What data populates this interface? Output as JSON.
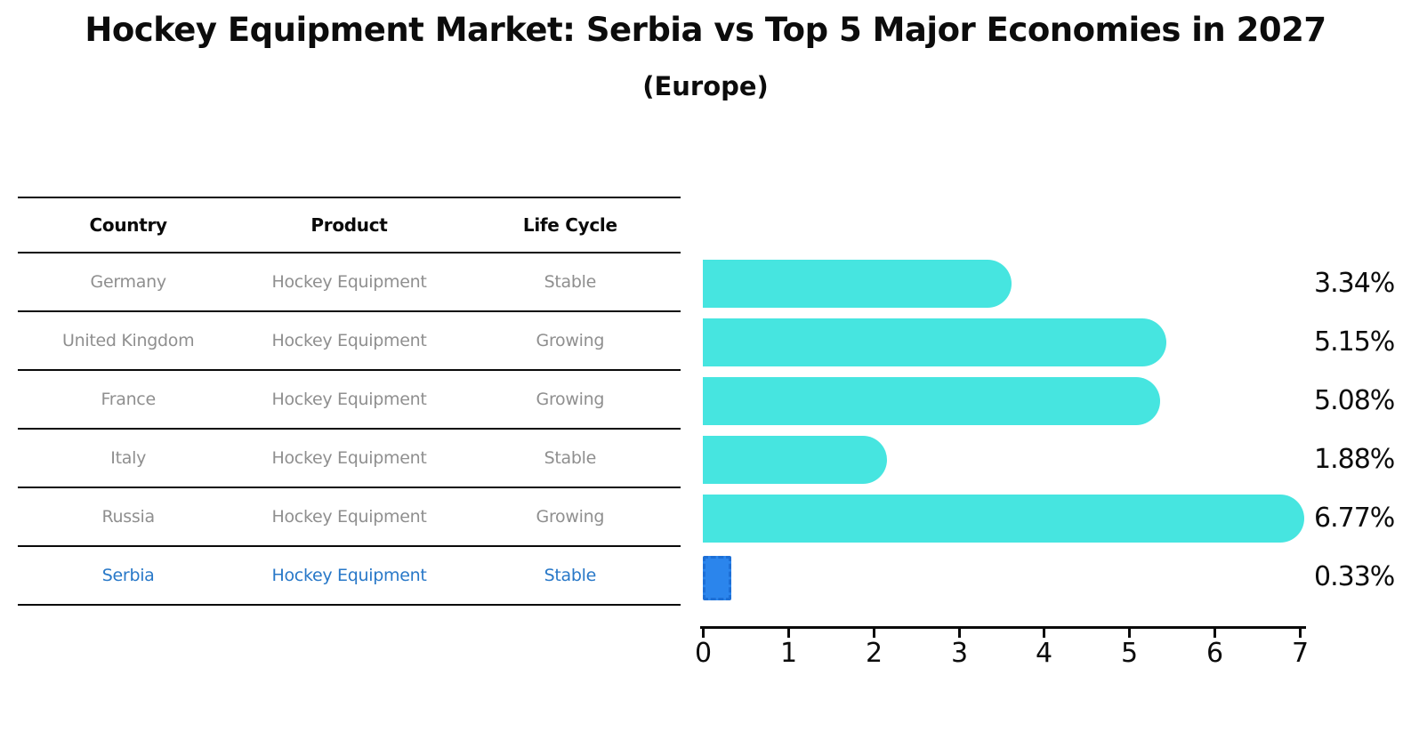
{
  "title": "Hockey Equipment Market: Serbia vs Top 5 Major Economies in 2027",
  "subtitle": "(Europe)",
  "table": {
    "headers": [
      "Country",
      "Product",
      "Life Cycle"
    ],
    "rows": [
      {
        "country": "Germany",
        "product": "Hockey Equipment",
        "life_cycle": "Stable",
        "highlight": false
      },
      {
        "country": "United Kingdom",
        "product": "Hockey Equipment",
        "life_cycle": "Growing",
        "highlight": false
      },
      {
        "country": "France",
        "product": "Hockey Equipment",
        "life_cycle": "Growing",
        "highlight": false
      },
      {
        "country": "Italy",
        "product": "Hockey Equipment",
        "life_cycle": "Stable",
        "highlight": false
      },
      {
        "country": "Russia",
        "product": "Hockey Equipment",
        "life_cycle": "Growing",
        "highlight": false
      },
      {
        "country": "Serbia",
        "product": "Hockey Equipment",
        "life_cycle": "Stable",
        "highlight": true
      }
    ]
  },
  "chart_data": {
    "type": "bar",
    "orientation": "horizontal",
    "title": "Hockey Equipment Market: Serbia vs Top 5 Major Economies in 2027",
    "subtitle": "(Europe)",
    "categories": [
      "Germany",
      "United Kingdom",
      "France",
      "Italy",
      "Russia",
      "Serbia"
    ],
    "values": [
      3.34,
      5.15,
      5.08,
      1.88,
      6.77,
      0.33
    ],
    "labels": [
      "3.34%",
      "5.15%",
      "5.08%",
      "1.88%",
      "6.77%",
      "0.33%"
    ],
    "unit": "percent",
    "xlim": [
      0,
      7
    ],
    "x_ticks": [
      "0",
      "1",
      "2",
      "3",
      "4",
      "5",
      "6",
      "7"
    ],
    "grid": false,
    "legend": false,
    "highlight_index": 5
  },
  "colors": {
    "bar": "#46e5e0",
    "highlight_bar": "#2b85ec",
    "highlight_bar_border": "#1d6fd6",
    "highlight_text": "#2878c8",
    "table_text": "#8f8f8f",
    "text": "#0c0c0c"
  }
}
